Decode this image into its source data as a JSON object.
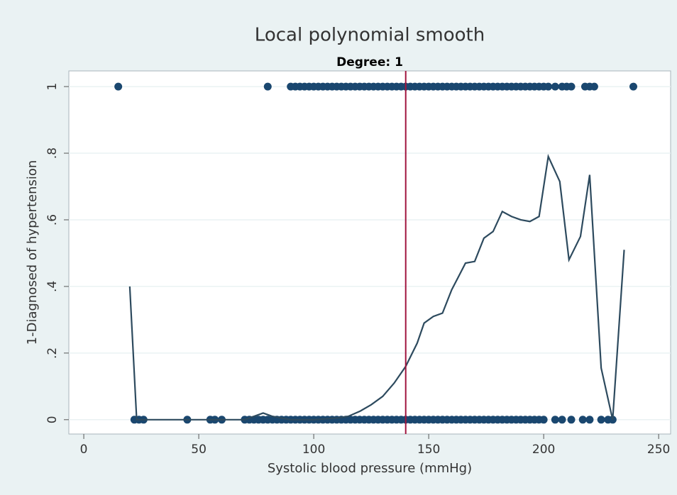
{
  "chart_data": {
    "type": "scatter",
    "title": "Local polynomial smooth",
    "subtitle": "Degree: 1",
    "x_label": "Systolic blood pressure (mmHg)",
    "y_label": "1-Diagnosed of hypertension",
    "xlim": [
      -6.5,
      255.2
    ],
    "ylim": [
      -0.043,
      1.047
    ],
    "xticks": [
      0,
      50,
      100,
      150,
      200,
      250
    ],
    "yticks": [
      0,
      {
        "value": 0.2,
        "label": ".2"
      },
      {
        "value": 0.4,
        "label": ".4"
      },
      {
        "value": 0.6,
        "label": ".6"
      },
      {
        "value": 0.8,
        "label": ".8"
      },
      1
    ],
    "grid": true,
    "points": [
      {
        "y": 1,
        "color": "#1a476f",
        "x": [
          15,
          80,
          90,
          92,
          94,
          96,
          98,
          100,
          102,
          104,
          106,
          108,
          110,
          112,
          114,
          116,
          118,
          120,
          122,
          124,
          126,
          128,
          130,
          132,
          134,
          136,
          138,
          140,
          142,
          144,
          146,
          148,
          150,
          152,
          154,
          156,
          158,
          160,
          162,
          164,
          166,
          168,
          170,
          172,
          174,
          176,
          178,
          180,
          182,
          184,
          186,
          188,
          190,
          192,
          194,
          196,
          198,
          200,
          202,
          205,
          208,
          210,
          212,
          218,
          220,
          222,
          239
        ]
      },
      {
        "y": 0,
        "color": "#1a476f",
        "x": [
          22,
          24,
          26,
          45,
          55,
          57,
          60,
          70,
          72,
          74,
          76,
          78,
          80,
          82,
          84,
          86,
          88,
          90,
          92,
          94,
          96,
          98,
          100,
          102,
          104,
          106,
          108,
          110,
          112,
          114,
          116,
          118,
          120,
          122,
          124,
          126,
          128,
          130,
          132,
          134,
          136,
          138,
          140,
          142,
          144,
          146,
          148,
          150,
          152,
          154,
          156,
          158,
          160,
          162,
          164,
          166,
          168,
          170,
          172,
          174,
          176,
          178,
          180,
          182,
          184,
          186,
          188,
          190,
          192,
          194,
          196,
          198,
          200,
          205,
          208,
          212,
          217,
          220,
          225,
          228,
          230
        ]
      }
    ],
    "smooth": {
      "color": "#2d4a5e",
      "x": [
        20,
        23,
        26,
        45,
        70,
        78,
        82,
        90,
        100,
        110,
        115,
        120,
        125,
        130,
        135,
        140,
        145,
        148,
        152,
        156,
        160,
        163,
        166,
        170,
        174,
        178,
        182,
        186,
        190,
        194,
        198,
        202,
        207,
        211,
        216,
        220,
        225,
        230,
        235
      ],
      "y": [
        0.4,
        0,
        0,
        0,
        0,
        0.02,
        0.01,
        0,
        0,
        0.005,
        0.01,
        0.025,
        0.045,
        0.07,
        0.11,
        0.16,
        0.23,
        0.29,
        0.31,
        0.32,
        0.39,
        0.43,
        0.47,
        0.475,
        0.545,
        0.565,
        0.625,
        0.61,
        0.6,
        0.595,
        0.61,
        0.79,
        0.715,
        0.48,
        0.55,
        0.735,
        0.155,
        0,
        0.51
      ]
    },
    "xline": {
      "value": 140,
      "color": "#a0153e"
    }
  }
}
